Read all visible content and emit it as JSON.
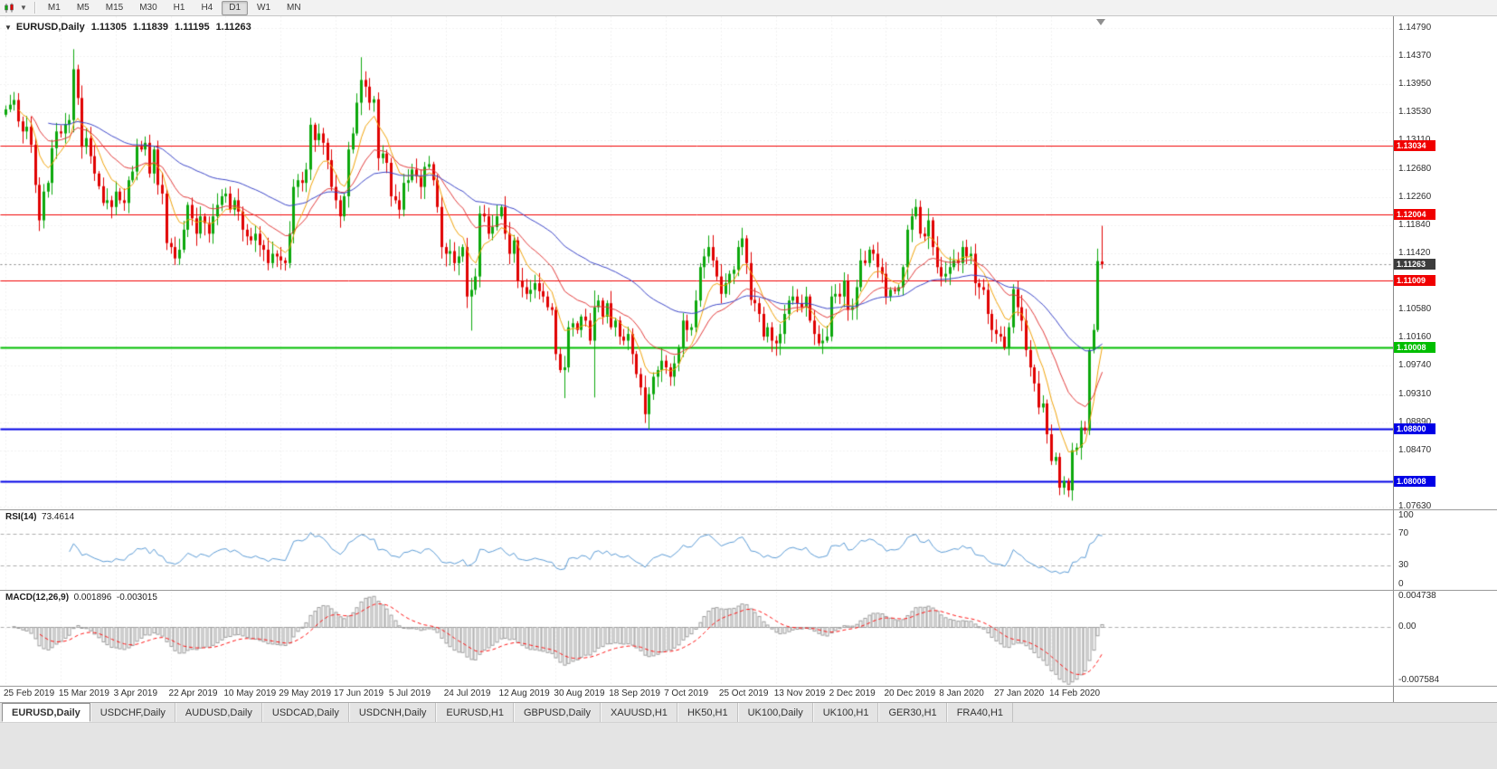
{
  "toolbar": {
    "chart_type_icon": "candlestick-chart-icon",
    "dropdown_icon": "chevron-down-icon",
    "timeframes": [
      "M1",
      "M5",
      "M15",
      "M30",
      "H1",
      "H4",
      "D1",
      "W1",
      "MN"
    ],
    "active_timeframe": "D1"
  },
  "chart": {
    "symbol": "EURUSD,Daily",
    "ohlc": {
      "open": "1.11305",
      "high": "1.11839",
      "low": "1.11195",
      "close": "1.11263"
    },
    "price_axis": [
      "1.14790",
      "1.14370",
      "1.13950",
      "1.13530",
      "1.13110",
      "1.12680",
      "1.12260",
      "1.11840",
      "1.11420",
      "1.10580",
      "1.10160",
      "1.09740",
      "1.09310",
      "1.08890",
      "1.08470",
      "1.07630"
    ],
    "current_price": {
      "label": "1.11263",
      "badge_color": "#3c3c3c"
    },
    "hlines": [
      {
        "label": "1.13034",
        "price": 1.13034,
        "color": "#f00000",
        "width": 1
      },
      {
        "label": "1.12004",
        "price": 1.12004,
        "color": "#f00000",
        "width": 1
      },
      {
        "label": "1.11009",
        "price": 1.11009,
        "color": "#f00000",
        "width": 1
      },
      {
        "label": "1.10008",
        "price": 1.10008,
        "color": "#00be00",
        "width": 2
      },
      {
        "label": "1.08800",
        "price": 1.088,
        "color": "#0000e6",
        "width": 2
      },
      {
        "label": "1.08008",
        "price": 1.08008,
        "color": "#0000e6",
        "width": 2
      }
    ],
    "colors": {
      "bull": "#0ca80c",
      "bear": "#e00000",
      "ma_fast": "#f0a30a",
      "ma_mid": "#e23b3b",
      "ma_slow": "#3c46c8",
      "rsi_line": "#5b9bd5",
      "macd_hist": "#9c9c9c",
      "macd_signal": "#ff1414",
      "grid": "#e3e3e3",
      "levels": "#adadad",
      "current_line": "#808080"
    }
  },
  "indicators": {
    "rsi": {
      "name": "RSI(14)",
      "value": "73.4614",
      "axis": [
        "100",
        "70",
        "30",
        "0"
      ],
      "levels": [
        70,
        30
      ]
    },
    "macd": {
      "name": "MACD(12,26,9)",
      "value": "0.001896",
      "signal": "-0.003015",
      "axis": [
        "0.004738",
        "0.00",
        "-0.007584"
      ],
      "range": [
        -0.007584,
        0.004738
      ]
    }
  },
  "tabs": {
    "active": "EURUSD,Daily",
    "items": [
      "EURUSD,Daily",
      "USDCHF,Daily",
      "AUDUSD,Daily",
      "USDCAD,Daily",
      "USDCNH,Daily",
      "EURUSD,H1",
      "GBPUSD,Daily",
      "XAUUSD,H1",
      "HK50,H1",
      "UK100,Daily",
      "UK100,H1",
      "GER30,H1",
      "FRA40,H1"
    ]
  },
  "chart_data": {
    "type": "candlestick",
    "symbol": "EURUSD",
    "timeframe": "Daily",
    "title": "EURUSD,Daily 1.11305 1.11839 1.11195 1.11263",
    "ylim": [
      1.0763,
      1.1479
    ],
    "x_labels": [
      "25 Feb 2019",
      "15 Mar 2019",
      "3 Apr 2019",
      "22 Apr 2019",
      "10 May 2019",
      "29 May 2019",
      "17 Jun 2019",
      "5 Jul 2019",
      "24 Jul 2019",
      "12 Aug 2019",
      "30 Aug 2019",
      "18 Sep 2019",
      "7 Oct 2019",
      "25 Oct 2019",
      "13 Nov 2019",
      "2 Dec 2019",
      "20 Dec 2019",
      "8 Jan 2020",
      "27 Jan 2020",
      "14 Feb 2020"
    ],
    "x_label_step": 13,
    "closes": [
      1.1358,
      1.1365,
      1.1372,
      1.134,
      1.1325,
      1.1332,
      1.1305,
      1.1245,
      1.1192,
      1.1235,
      1.1248,
      1.13,
      1.1325,
      1.1322,
      1.1336,
      1.1342,
      1.1418,
      1.1375,
      1.1302,
      1.1315,
      1.1288,
      1.1262,
      1.1243,
      1.1218,
      1.1222,
      1.1212,
      1.1235,
      1.1222,
      1.1218,
      1.1252,
      1.1265,
      1.1302,
      1.1298,
      1.1308,
      1.1262,
      1.1298,
      1.1245,
      1.1232,
      1.1158,
      1.1152,
      1.1135,
      1.1148,
      1.1178,
      1.1215,
      1.1195,
      1.1172,
      1.1198,
      1.1188,
      1.1172,
      1.1198,
      1.1215,
      1.1228,
      1.1232,
      1.1208,
      1.1222,
      1.1205,
      1.1178,
      1.1168,
      1.1162,
      1.1172,
      1.1155,
      1.1148,
      1.1128,
      1.1142,
      1.1138,
      1.1132,
      1.1128,
      1.1172,
      1.1242,
      1.1252,
      1.1248,
      1.1268,
      1.1335,
      1.1312,
      1.1322,
      1.1308,
      1.1282,
      1.1242,
      1.1222,
      1.1198,
      1.1228,
      1.1298,
      1.1322,
      1.1368,
      1.1402,
      1.1392,
      1.1368,
      1.1373,
      1.1285,
      1.1292,
      1.1278,
      1.1228,
      1.1222,
      1.1208,
      1.1248,
      1.1252,
      1.1268,
      1.1258,
      1.1242,
      1.1272,
      1.1276,
      1.1252,
      1.1212,
      1.1152,
      1.1142,
      1.1146,
      1.1128,
      1.1138,
      1.1152,
      1.1078,
      1.1088,
      1.1108,
      1.1202,
      1.1198,
      1.1172,
      1.1182,
      1.1198,
      1.1212,
      1.1172,
      1.1142,
      1.1162,
      1.1102,
      1.1092,
      1.1082,
      1.1088,
      1.1098,
      1.1086,
      1.1078,
      1.1062,
      1.1058,
      1.0992,
      1.0968,
      1.0972,
      1.1032,
      1.1038,
      1.1028,
      1.1048,
      1.1042,
      1.1012,
      1.1062,
      1.1072,
      1.1048,
      1.1068,
      1.1032,
      1.1042,
      1.1018,
      1.1012,
      1.1022,
      1.0992,
      1.0962,
      1.0942,
      1.0902,
      1.0932,
      1.0958,
      1.0968,
      1.0982,
      1.0972,
      1.0958,
      1.0978,
      1.1002,
      1.1042,
      1.1028,
      1.1032,
      1.1072,
      1.1122,
      1.1138,
      1.1152,
      1.1132,
      1.1108,
      1.1082,
      1.1098,
      1.1112,
      1.1118,
      1.1152,
      1.1165,
      1.1128,
      1.1073,
      1.1068,
      1.1052,
      1.1018,
      1.1032,
      1.1012,
      1.1008,
      1.1022,
      1.1052,
      1.1072,
      1.1078,
      1.1068,
      1.1062,
      1.1078,
      1.1042,
      1.1022,
      1.1008,
      1.1012,
      1.1018,
      1.1078,
      1.1082,
      1.1078,
      1.1102,
      1.1058,
      1.1062,
      1.1092,
      1.1132,
      1.1128,
      1.1148,
      1.1142,
      1.1122,
      1.1112,
      1.1078,
      1.1088,
      1.1086,
      1.1092,
      1.1122,
      1.1178,
      1.1198,
      1.1212,
      1.1172,
      1.1168,
      1.1192,
      1.1152,
      1.1122,
      1.1108,
      1.1112,
      1.1122,
      1.1132,
      1.1128,
      1.1152,
      1.1138,
      1.1142,
      1.1098,
      1.1092,
      1.1088,
      1.1052,
      1.1028,
      1.1022,
      1.1018,
      1.1002,
      1.1032,
      1.1089,
      1.1062,
      1.1042,
      1.0998,
      1.0972,
      1.0948,
      1.0912,
      1.0918,
      1.0872,
      1.0832,
      1.0838,
      1.0792,
      1.0802,
      1.0788,
      1.0848,
      1.0852,
      1.0882,
      1.0878,
      1.0998,
      1.1028,
      1.1131,
      1.11263
    ],
    "last_candle": {
      "open": 1.11305,
      "high": 1.11839,
      "low": 1.11195,
      "close": 1.11263
    },
    "wick_overrides": {
      "8": {
        "low": 1.1176
      },
      "16": {
        "high": 1.1448
      },
      "84": {
        "high": 1.1436
      },
      "110": {
        "low": 1.1027
      },
      "132": {
        "low": 1.0926
      },
      "139": {
        "low": 1.0927,
        "high": 1.1087
      },
      "152": {
        "low": 1.0879
      },
      "251": {
        "low": 1.0778
      }
    },
    "overlays": [
      {
        "name": "ma-fast",
        "type": "ema",
        "period": 8,
        "color": "#f0a30a"
      },
      {
        "name": "ma-mid",
        "type": "ema",
        "period": 21,
        "color": "#e23b3b"
      },
      {
        "name": "ma-slow",
        "type": "ema",
        "period": 55,
        "color": "#3c46c8"
      }
    ],
    "indicators": [
      {
        "type": "rsi",
        "period": 14,
        "last_value": 73.4614,
        "range": [
          0,
          100
        ],
        "levels": [
          70,
          30
        ]
      },
      {
        "type": "macd",
        "params": [
          12,
          26,
          9
        ],
        "macd": 0.001896,
        "signal": -0.003015,
        "range": [
          -0.007584,
          0.004738
        ]
      }
    ]
  }
}
